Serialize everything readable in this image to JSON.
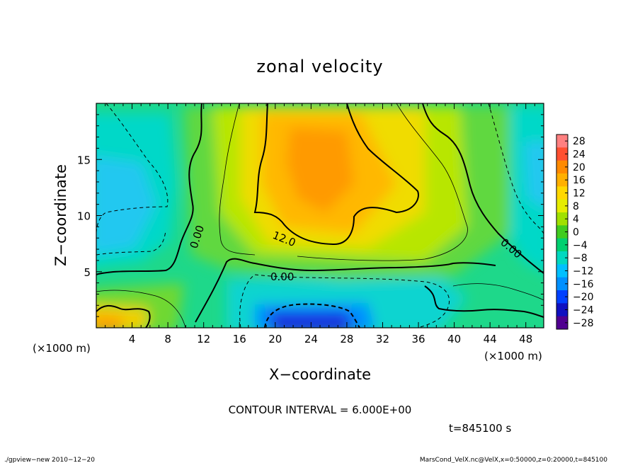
{
  "chart_data": {
    "type": "heatmap",
    "title": "zonal velocity",
    "xlabel": "X−coordinate",
    "ylabel": "Z−coordinate",
    "x_unit_left": "(×1000 m)",
    "x_unit_right": "(×1000 m)",
    "xlim": [
      0,
      50
    ],
    "ylim": [
      0,
      20
    ],
    "x_ticks": [
      4,
      8,
      12,
      16,
      20,
      24,
      28,
      32,
      36,
      40,
      44,
      48
    ],
    "x_tick_labels": [
      "4",
      "8",
      "12",
      "16",
      "20",
      "24",
      "28",
      "32",
      "36",
      "40",
      "44",
      "48"
    ],
    "y_ticks": [
      5,
      10,
      15
    ],
    "y_tick_labels": [
      "5",
      "10",
      "15"
    ],
    "colorbar": {
      "levels": [
        28,
        24,
        20,
        16,
        12,
        8,
        4,
        0,
        -4,
        -8,
        -12,
        -16,
        -20,
        -24,
        -28
      ],
      "labels": [
        "28",
        "24",
        "20",
        "16",
        "12",
        "8",
        "4",
        "0",
        "−4",
        "−8",
        "−12",
        "−16",
        "−20",
        "−24",
        "−28"
      ],
      "colors": [
        "#ff8080",
        "#ff5030",
        "#ff8a00",
        "#ffb000",
        "#ffd800",
        "#e6ec00",
        "#a0e000",
        "#40cc20",
        "#00d070",
        "#00d8c0",
        "#00c0ff",
        "#0090ff",
        "#0040ff",
        "#1010c0",
        "#500090"
      ]
    },
    "contour_labels": [
      "0.00",
      "12.0",
      "0.00",
      "0.00"
    ],
    "contour_interval_text": "CONTOUR INTERVAL = 6.000E+00",
    "time_text": "t=845100 s",
    "footer_left": "./gpview−new   2010−12−20",
    "footer_right": "MarsCond_VelX.nc@VelX,x=0:50000,z=0:20000,t=845100"
  }
}
